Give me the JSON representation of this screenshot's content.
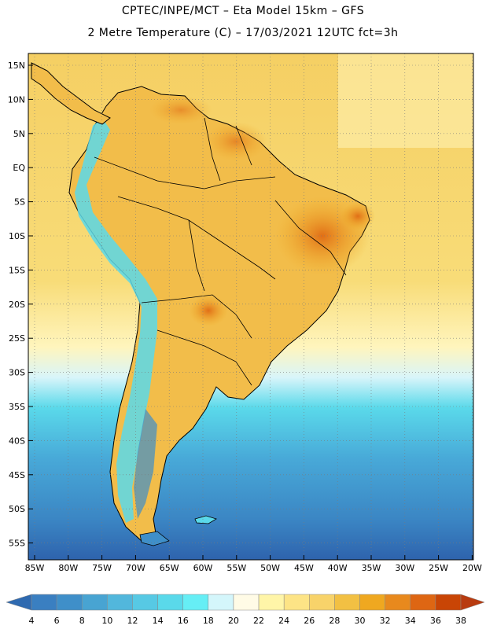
{
  "header": {
    "line1": "CPTEC/INPE/MCT –  Eta Model 15km – GFS",
    "line2": "2 Metre Temperature (C) – 17/03/2021 12UTC fct=3h"
  },
  "map": {
    "lat_labels": [
      "15N",
      "10N",
      "5N",
      "EQ",
      "5S",
      "10S",
      "15S",
      "20S",
      "25S",
      "30S",
      "35S",
      "40S",
      "45S",
      "50S",
      "55S"
    ],
    "lon_labels": [
      "85W",
      "80W",
      "75W",
      "70W",
      "65W",
      "60W",
      "55W",
      "50W",
      "45W",
      "40W",
      "35W",
      "30W",
      "25W",
      "20W"
    ]
  },
  "legend": {
    "values": [
      "4",
      "6",
      "8",
      "10",
      "12",
      "14",
      "16",
      "18",
      "20",
      "22",
      "24",
      "26",
      "28",
      "30",
      "32",
      "34",
      "36",
      "38"
    ],
    "colors": [
      "#3a7fc1",
      "#3f8fc9",
      "#48a4d2",
      "#52b7dc",
      "#57c9e4",
      "#5ad9ea",
      "#66eef5",
      "#d4f6fb",
      "#fffbe6",
      "#fff5a8",
      "#fde486",
      "#f8d36a",
      "#f2c043",
      "#efa820",
      "#e8891d",
      "#de6613",
      "#c94505"
    ],
    "low_color": "#2f6ab0",
    "high_color": "#b83b10"
  }
}
